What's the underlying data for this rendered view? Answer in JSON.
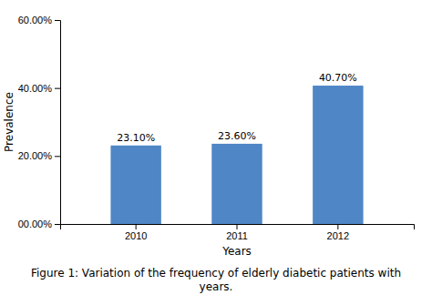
{
  "chart_data": {
    "type": "bar",
    "categories": [
      "2010",
      "2011",
      "2012"
    ],
    "values": [
      23.1,
      23.6,
      40.7
    ],
    "value_labels": [
      "23.10%",
      "23.60%",
      "40.70%"
    ],
    "data_labels": true,
    "color": "#4f86c6",
    "xlabel": "Years",
    "ylabel": "Prevalence",
    "ylim": [
      0,
      60
    ],
    "yticks": [
      {
        "value": 0,
        "label": "00.00%"
      },
      {
        "value": 20,
        "label": "20.00%"
      },
      {
        "value": 40,
        "label": "40.00%"
      },
      {
        "value": 60,
        "label": "60.00%"
      }
    ],
    "grid": false,
    "caption": [
      "Figure 1: Variation of the frequency of elderly diabetic patients with",
      "years."
    ]
  }
}
